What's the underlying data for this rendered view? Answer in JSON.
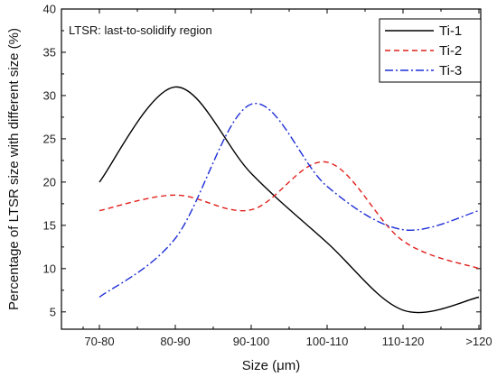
{
  "chart_data": {
    "type": "line",
    "categories": [
      "70-80",
      "80-90",
      "90-100",
      "100-110",
      "110-120",
      ">120"
    ],
    "series": [
      {
        "name": "Ti-1",
        "values": [
          20.0,
          31.0,
          21.0,
          13.0,
          5.2,
          6.7
        ],
        "color": "#000000",
        "dash": "solid"
      },
      {
        "name": "Ti-2",
        "values": [
          16.7,
          18.5,
          16.8,
          22.3,
          13.2,
          10.0
        ],
        "color": "#e0201b",
        "dash": "dash"
      },
      {
        "name": "Ti-3",
        "values": [
          6.7,
          13.5,
          29.0,
          19.5,
          14.5,
          16.7
        ],
        "color": "#1f2fd6",
        "dash": "dashdot"
      }
    ],
    "title": "",
    "xlabel": "Size (μm)",
    "ylabel": "Percentage of LTSR size with different size (%)",
    "ylim": [
      3,
      40
    ],
    "yticks": [
      5,
      10,
      15,
      20,
      25,
      30,
      35,
      40
    ],
    "annotation": "LTSR: last-to-solidify region",
    "legend_position": "top-right",
    "grid": false
  }
}
